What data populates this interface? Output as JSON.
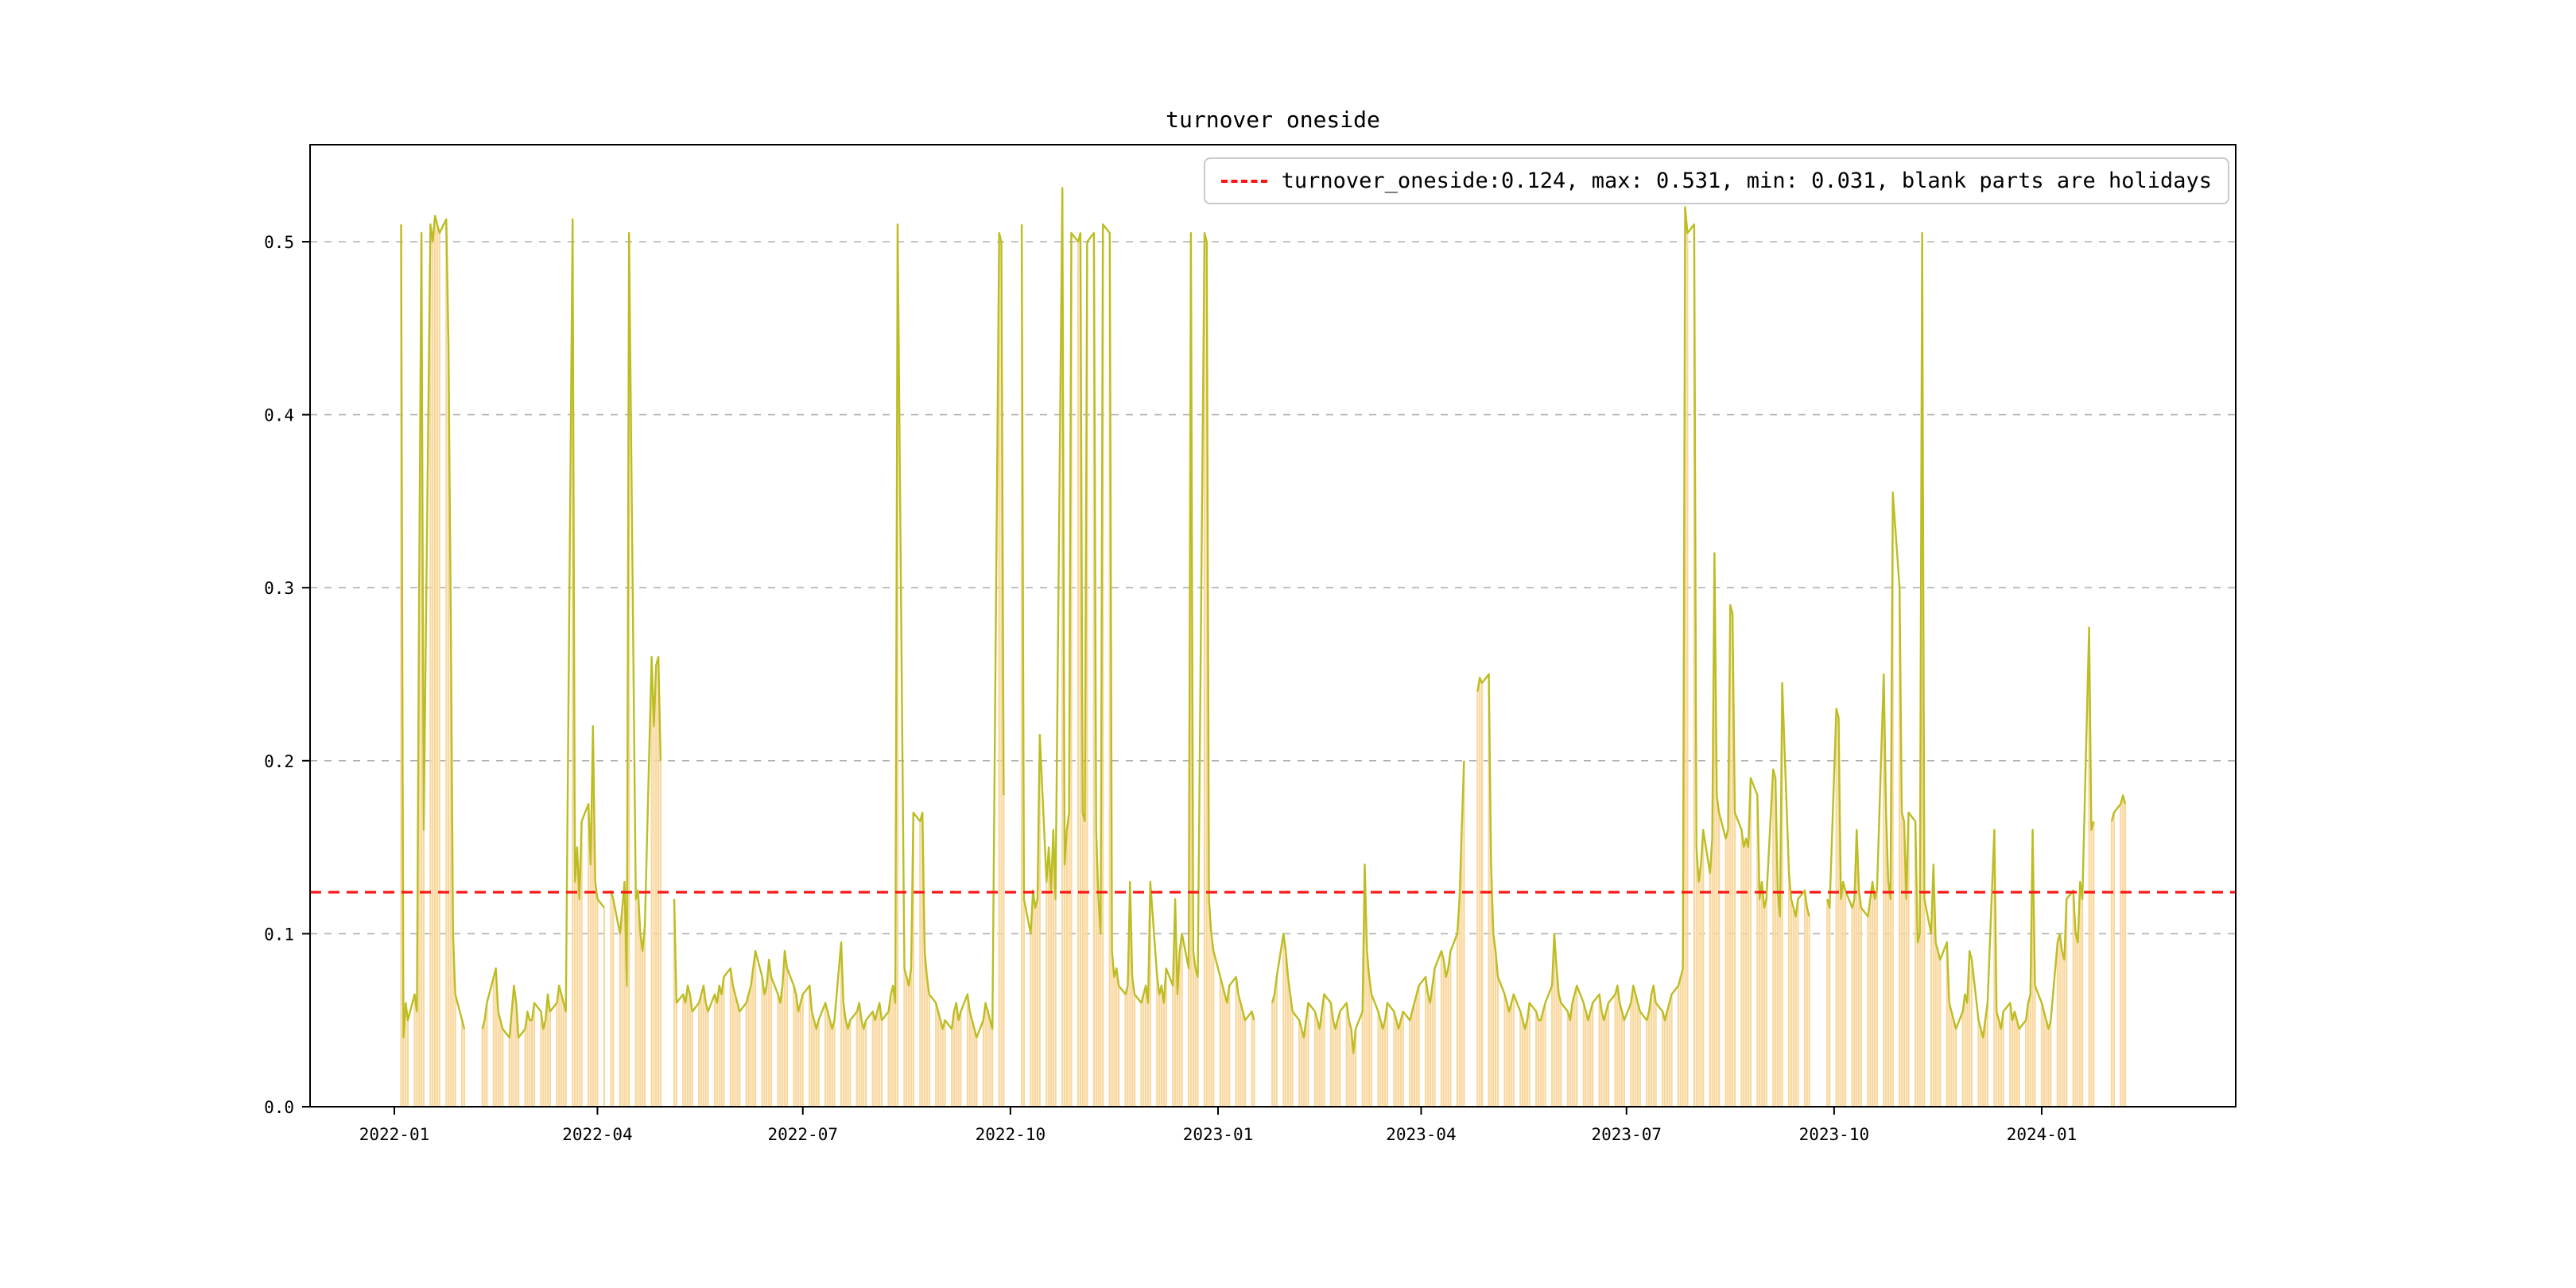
{
  "figure": {
    "title": "turnover oneside"
  },
  "legend": {
    "label": "turnover_oneside:0.124, max: 0.531, min: 0.031, blank parts are holidays"
  },
  "chart_data": {
    "type": "bar",
    "subtype": "daily bars with overlaid line and threshold",
    "title": "turnover oneside",
    "series_name": "turnover_oneside",
    "threshold": 0.124,
    "stats": {
      "current": 0.124,
      "max": 0.531,
      "min": 0.031
    },
    "gap_meaning": "blank parts are holidays",
    "ylim": [
      0.0,
      0.556
    ],
    "y_ticks": [
      "0.0",
      "0.1",
      "0.2",
      "0.3",
      "0.4",
      "0.5"
    ],
    "x_ticks": [
      "2022-01",
      "2022-04",
      "2022-07",
      "2022-10",
      "2023-01",
      "2023-04",
      "2023-07",
      "2023-10",
      "2024-01"
    ],
    "start_date": "2022-01-04",
    "line_color": "#bcbd22",
    "bar_color": "#f9d89f",
    "threshold_color": "#ff1414",
    "grid_color": "#b0b0b0",
    "values": [
      0.51,
      0.04,
      0.06,
      0.05,
      0.065,
      0.055,
      0.3,
      0.505,
      0.16,
      0.51,
      0.5,
      0.515,
      0.51,
      0.505,
      0.513,
      0.44,
      0.28,
      0.1,
      0.065,
      0.05,
      0.045,
      null,
      null,
      null,
      null,
      null,
      0.045,
      0.05,
      0.06,
      0.075,
      0.08,
      0.055,
      0.05,
      0.045,
      0.04,
      0.055,
      0.07,
      0.06,
      0.04,
      0.045,
      0.055,
      0.05,
      0.05,
      0.06,
      0.055,
      0.045,
      0.05,
      0.065,
      0.055,
      0.06,
      0.07,
      0.065,
      0.06,
      0.055,
      0.513,
      0.13,
      0.15,
      0.12,
      0.165,
      0.175,
      0.14,
      0.22,
      0.13,
      0.12,
      0.115,
      null,
      null,
      0.125,
      0.12,
      0.1,
      0.115,
      0.13,
      0.07,
      0.505,
      0.12,
      0.125,
      0.1,
      0.09,
      0.105,
      0.26,
      0.22,
      0.255,
      0.26,
      0.2,
      null,
      null,
      null,
      0.12,
      0.06,
      0.065,
      0.06,
      0.07,
      0.065,
      0.055,
      0.06,
      0.065,
      0.07,
      0.06,
      0.055,
      0.065,
      0.06,
      0.07,
      0.065,
      0.075,
      0.08,
      0.07,
      0.065,
      0.06,
      0.055,
      0.06,
      0.065,
      0.07,
      0.08,
      0.09,
      0.075,
      0.065,
      0.07,
      0.085,
      0.075,
      0.065,
      0.06,
      0.07,
      0.09,
      0.08,
      0.07,
      0.065,
      0.055,
      0.06,
      0.065,
      0.07,
      0.055,
      0.05,
      0.045,
      0.05,
      0.06,
      0.055,
      0.05,
      0.045,
      0.05,
      0.095,
      0.06,
      0.05,
      0.045,
      0.05,
      0.055,
      0.06,
      0.05,
      0.045,
      0.05,
      0.055,
      0.05,
      0.055,
      0.06,
      0.05,
      0.055,
      0.065,
      0.07,
      0.06,
      0.51,
      0.08,
      0.075,
      0.07,
      0.08,
      0.17,
      0.165,
      0.17,
      0.09,
      0.075,
      0.065,
      0.06,
      0.055,
      0.05,
      0.045,
      0.05,
      0.045,
      0.055,
      0.06,
      0.05,
      0.055,
      0.065,
      0.055,
      0.05,
      0.045,
      0.04,
      0.05,
      0.06,
      0.055,
      0.05,
      0.045,
      0.505,
      0.5,
      0.18,
      null,
      null,
      null,
      null,
      null,
      0.51,
      0.12,
      0.1,
      0.125,
      0.115,
      0.12,
      0.215,
      0.13,
      0.15,
      0.125,
      0.16,
      0.12,
      0.531,
      0.14,
      0.16,
      0.17,
      0.505,
      0.5,
      0.505,
      0.17,
      0.165,
      0.5,
      0.505,
      0.16,
      0.12,
      0.1,
      0.51,
      0.505,
      0.09,
      0.075,
      0.08,
      0.07,
      0.065,
      0.07,
      0.13,
      0.075,
      0.065,
      0.06,
      0.065,
      0.07,
      0.06,
      0.13,
      0.075,
      0.065,
      0.07,
      0.06,
      0.08,
      0.07,
      0.12,
      0.065,
      0.09,
      0.1,
      0.08,
      0.505,
      0.09,
      0.08,
      0.075,
      0.505,
      0.5,
      0.12,
      0.1,
      0.09,
      0.075,
      0.07,
      0.065,
      0.06,
      0.07,
      0.075,
      0.065,
      0.06,
      0.055,
      0.05,
      0.055,
      0.05,
      null,
      null,
      null,
      null,
      null,
      0.06,
      0.065,
      0.075,
      0.1,
      0.09,
      0.075,
      0.065,
      0.055,
      0.05,
      0.045,
      0.04,
      0.05,
      0.06,
      0.055,
      0.05,
      0.045,
      0.055,
      0.065,
      0.06,
      0.05,
      0.045,
      0.05,
      0.055,
      0.06,
      0.05,
      0.045,
      0.031,
      0.045,
      0.055,
      0.14,
      0.09,
      0.075,
      0.065,
      0.055,
      0.05,
      0.045,
      0.05,
      0.06,
      0.055,
      0.05,
      0.045,
      0.05,
      0.055,
      0.05,
      0.055,
      0.06,
      0.065,
      0.07,
      0.075,
      0.065,
      0.06,
      0.07,
      0.08,
      0.09,
      0.085,
      0.075,
      0.08,
      0.09,
      0.1,
      0.12,
      0.16,
      0.2,
      null,
      null,
      null,
      0.24,
      0.248,
      0.245,
      0.25,
      0.14,
      0.1,
      0.09,
      0.075,
      0.065,
      0.06,
      0.055,
      0.06,
      0.065,
      0.055,
      0.05,
      0.045,
      0.05,
      0.06,
      0.055,
      0.05,
      0.05,
      0.055,
      0.06,
      0.07,
      0.1,
      0.08,
      0.065,
      0.06,
      0.055,
      0.05,
      0.06,
      0.065,
      0.07,
      0.06,
      0.055,
      0.05,
      0.055,
      0.06,
      0.065,
      0.055,
      0.05,
      0.055,
      0.06,
      0.065,
      0.07,
      0.06,
      0.055,
      0.05,
      0.06,
      0.07,
      0.065,
      0.06,
      0.055,
      0.05,
      0.055,
      0.065,
      0.07,
      0.06,
      0.055,
      0.05,
      0.055,
      0.06,
      0.065,
      0.07,
      0.075,
      0.08,
      0.52,
      0.505,
      0.51,
      0.15,
      0.13,
      0.14,
      0.16,
      0.135,
      0.155,
      0.32,
      0.18,
      0.17,
      0.155,
      0.16,
      0.29,
      0.285,
      0.17,
      0.16,
      0.15,
      0.155,
      0.15,
      0.19,
      0.18,
      0.12,
      0.13,
      0.115,
      0.12,
      0.195,
      0.19,
      0.125,
      0.11,
      0.245,
      0.135,
      0.12,
      0.115,
      0.11,
      0.12,
      0.125,
      0.115,
      0.11,
      null,
      null,
      null,
      null,
      null,
      0.12,
      0.115,
      0.23,
      0.225,
      0.12,
      0.13,
      0.125,
      0.115,
      0.12,
      0.16,
      0.125,
      0.115,
      0.11,
      0.12,
      0.13,
      0.12,
      0.125,
      0.25,
      0.17,
      0.13,
      0.12,
      0.355,
      0.3,
      0.17,
      0.165,
      0.12,
      0.17,
      0.165,
      0.095,
      0.1,
      0.505,
      0.12,
      0.1,
      0.14,
      0.095,
      0.09,
      0.085,
      0.095,
      0.06,
      0.055,
      0.05,
      0.045,
      0.055,
      0.065,
      0.06,
      0.09,
      0.085,
      0.05,
      0.045,
      0.04,
      0.05,
      0.06,
      0.16,
      0.055,
      0.05,
      0.045,
      0.055,
      0.06,
      0.05,
      0.055,
      0.05,
      0.045,
      0.05,
      0.06,
      0.065,
      0.16,
      0.07,
      0.06,
      0.055,
      0.05,
      0.045,
      0.05,
      0.095,
      0.1,
      0.09,
      0.085,
      0.12,
      0.125,
      0.1,
      0.095,
      0.13,
      0.12,
      0.277,
      0.16,
      0.165,
      null,
      null,
      null,
      null,
      null,
      0.165,
      0.17,
      0.175,
      0.18,
      0.175
    ]
  }
}
